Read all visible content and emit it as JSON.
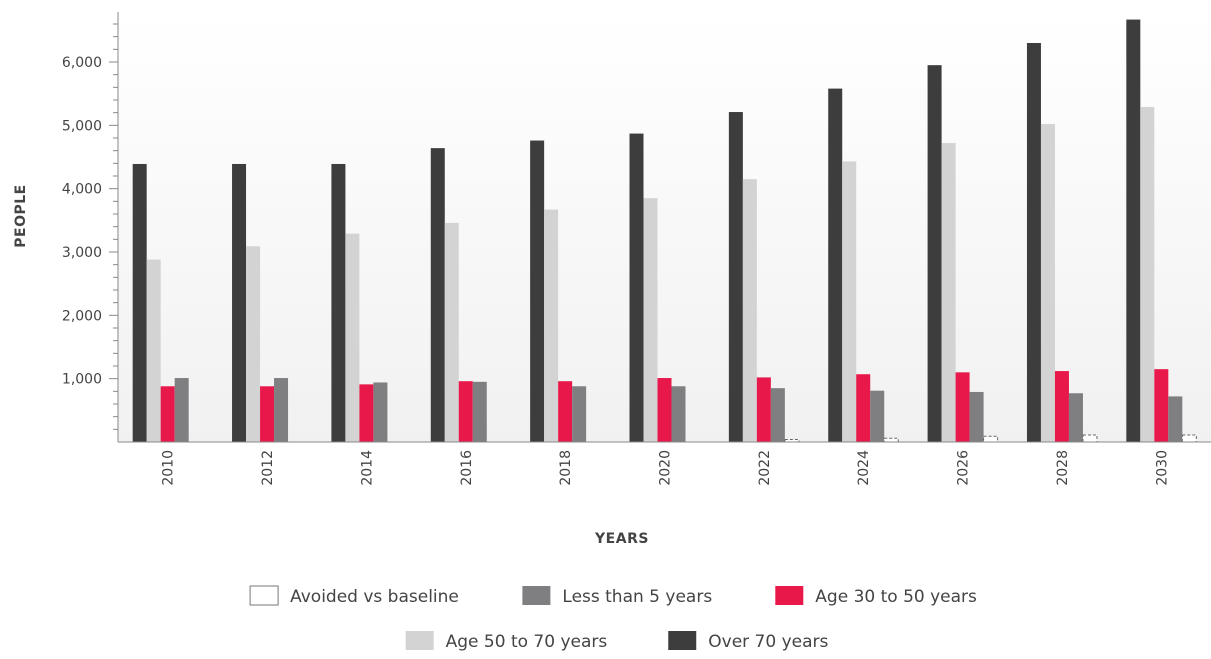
{
  "chart_data": {
    "type": "bar",
    "xlabel": "YEARS",
    "ylabel": "PEOPLE",
    "categories": [
      "2010",
      "2012",
      "2014",
      "2016",
      "2018",
      "2020",
      "2022",
      "2024",
      "2026",
      "2028",
      "2030"
    ],
    "yticks": [
      "1,000",
      "2,000",
      "3,000",
      "4,000",
      "5,000",
      "6,000"
    ],
    "ylim": [
      0,
      6700
    ],
    "grid": false,
    "legend_position": "bottom",
    "series": [
      {
        "name": "Over 70 years",
        "color": "#3d3d3d",
        "values": [
          4390,
          4390,
          4390,
          4640,
          4760,
          4870,
          5210,
          5580,
          5950,
          6300,
          6670
        ]
      },
      {
        "name": "Age 50 to 70 years",
        "color": "#d3d3d3",
        "values": [
          2880,
          3090,
          3290,
          3460,
          3670,
          3850,
          4150,
          4430,
          4720,
          5020,
          5290
        ]
      },
      {
        "name": "Age 30 to 50 years",
        "color": "#e8194a",
        "values": [
          880,
          880,
          910,
          960,
          960,
          1010,
          1020,
          1070,
          1100,
          1120,
          1150
        ]
      },
      {
        "name": "Less than 5 years",
        "color": "#7f7f82",
        "values": [
          1010,
          1010,
          940,
          950,
          880,
          880,
          850,
          810,
          790,
          770,
          720
        ]
      },
      {
        "name": "Avoided vs baseline",
        "color": "#ffffff",
        "values": [
          0,
          0,
          0,
          0,
          0,
          0,
          40,
          60,
          90,
          110,
          110
        ]
      }
    ]
  }
}
